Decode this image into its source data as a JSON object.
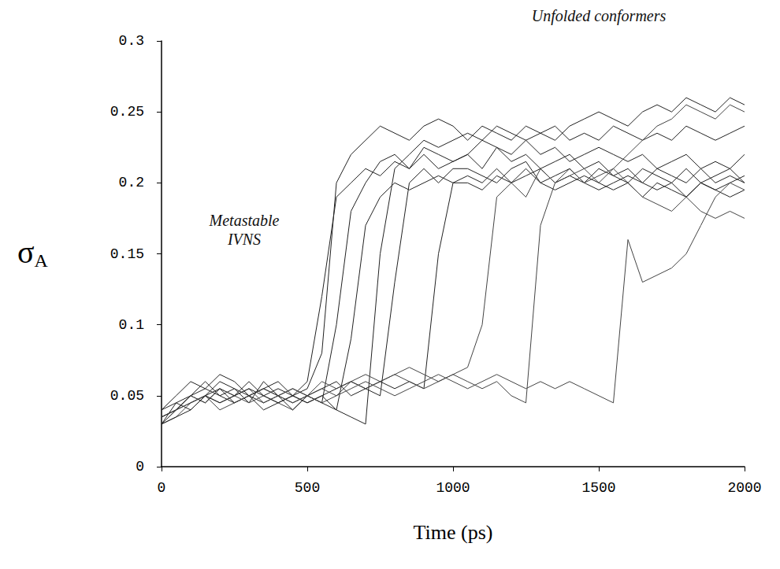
{
  "chart_data": {
    "type": "line",
    "xlabel": "Time (ps)",
    "ylabel": {
      "symbol": "σ",
      "subscript": "A"
    },
    "annotations": [
      {
        "lines": [
          "Unfolded conformers"
        ]
      },
      {
        "lines": [
          "Metastable",
          "IVNS"
        ]
      }
    ],
    "xlim": [
      0,
      2000
    ],
    "xticks": [
      0,
      500,
      1000,
      1500,
      2000
    ],
    "ylim": [
      0,
      0.3
    ],
    "yticks": [
      0,
      0.05,
      0.1,
      0.15,
      0.2,
      0.25,
      0.3
    ],
    "grid": false,
    "x": [
      0,
      50,
      100,
      150,
      200,
      250,
      300,
      350,
      400,
      450,
      500,
      550,
      600,
      650,
      700,
      750,
      800,
      850,
      900,
      950,
      1000,
      1050,
      1100,
      1150,
      1200,
      1250,
      1300,
      1350,
      1400,
      1450,
      1500,
      1550,
      1600,
      1650,
      1700,
      1750,
      1800,
      1850,
      1900,
      1950,
      2000
    ],
    "series": [
      {
        "color": "#222222",
        "values": [
          0.03,
          0.04,
          0.05,
          0.045,
          0.055,
          0.05,
          0.06,
          0.05,
          0.055,
          0.05,
          0.06,
          0.12,
          0.19,
          0.2,
          0.21,
          0.205,
          0.215,
          0.21,
          0.22,
          0.21,
          0.215,
          0.22,
          0.21,
          0.225,
          0.215,
          0.22,
          0.21,
          0.215,
          0.22,
          0.21,
          0.215,
          0.205,
          0.21,
          0.2,
          0.21,
          0.205,
          0.2,
          0.21,
          0.2,
          0.205,
          0.2
        ]
      },
      {
        "color": "#222222",
        "values": [
          0.035,
          0.04,
          0.05,
          0.06,
          0.05,
          0.055,
          0.045,
          0.06,
          0.05,
          0.055,
          0.05,
          0.045,
          0.1,
          0.18,
          0.2,
          0.215,
          0.22,
          0.21,
          0.225,
          0.22,
          0.215,
          0.22,
          0.23,
          0.225,
          0.22,
          0.23,
          0.22,
          0.225,
          0.215,
          0.22,
          0.225,
          0.22,
          0.215,
          0.22,
          0.21,
          0.215,
          0.22,
          0.21,
          0.215,
          0.21,
          0.22
        ]
      },
      {
        "color": "#222222",
        "values": [
          0.03,
          0.045,
          0.04,
          0.05,
          0.06,
          0.055,
          0.05,
          0.045,
          0.05,
          0.04,
          0.05,
          0.045,
          0.04,
          0.09,
          0.17,
          0.19,
          0.2,
          0.195,
          0.2,
          0.205,
          0.2,
          0.2,
          0.195,
          0.205,
          0.2,
          0.21,
          0.2,
          0.195,
          0.2,
          0.205,
          0.2,
          0.195,
          0.2,
          0.19,
          0.2,
          0.195,
          0.19,
          0.2,
          0.195,
          0.19,
          0.195
        ]
      },
      {
        "color": "#222222",
        "values": [
          0.04,
          0.05,
          0.06,
          0.055,
          0.065,
          0.06,
          0.05,
          0.055,
          0.06,
          0.05,
          0.045,
          0.05,
          0.04,
          0.035,
          0.03,
          0.15,
          0.21,
          0.22,
          0.23,
          0.225,
          0.23,
          0.235,
          0.23,
          0.24,
          0.235,
          0.23,
          0.235,
          0.24,
          0.23,
          0.235,
          0.23,
          0.24,
          0.235,
          0.23,
          0.235,
          0.23,
          0.24,
          0.235,
          0.23,
          0.235,
          0.24
        ]
      },
      {
        "color": "#222222",
        "values": [
          0.035,
          0.04,
          0.045,
          0.05,
          0.055,
          0.045,
          0.05,
          0.055,
          0.05,
          0.045,
          0.05,
          0.055,
          0.06,
          0.05,
          0.055,
          0.05,
          0.13,
          0.2,
          0.21,
          0.2,
          0.21,
          0.21,
          0.205,
          0.2,
          0.21,
          0.215,
          0.2,
          0.205,
          0.21,
          0.2,
          0.195,
          0.2,
          0.205,
          0.2,
          0.195,
          0.2,
          0.19,
          0.2,
          0.195,
          0.2,
          0.205
        ]
      },
      {
        "color": "#222222",
        "values": [
          0.04,
          0.045,
          0.05,
          0.055,
          0.05,
          0.045,
          0.05,
          0.04,
          0.045,
          0.05,
          0.045,
          0.05,
          0.055,
          0.06,
          0.055,
          0.06,
          0.055,
          0.06,
          0.055,
          0.15,
          0.2,
          0.205,
          0.2,
          0.21,
          0.2,
          0.205,
          0.21,
          0.2,
          0.205,
          0.2,
          0.21,
          0.205,
          0.2,
          0.21,
          0.205,
          0.2,
          0.21,
          0.2,
          0.205,
          0.21,
          0.2
        ]
      },
      {
        "color": "#444444",
        "values": [
          0.03,
          0.035,
          0.045,
          0.05,
          0.04,
          0.045,
          0.05,
          0.055,
          0.05,
          0.045,
          0.05,
          0.06,
          0.055,
          0.06,
          0.065,
          0.06,
          0.065,
          0.07,
          0.065,
          0.06,
          0.065,
          0.07,
          0.1,
          0.19,
          0.2,
          0.19,
          0.21,
          0.2,
          0.205,
          0.21,
          0.2,
          0.21,
          0.22,
          0.23,
          0.24,
          0.245,
          0.255,
          0.25,
          0.245,
          0.255,
          0.25
        ]
      },
      {
        "color": "#444444",
        "values": [
          0.03,
          0.04,
          0.05,
          0.045,
          0.055,
          0.05,
          0.045,
          0.05,
          0.045,
          0.04,
          0.05,
          0.055,
          0.05,
          0.06,
          0.055,
          0.06,
          0.065,
          0.06,
          0.055,
          0.06,
          0.065,
          0.06,
          0.055,
          0.06,
          0.05,
          0.045,
          0.17,
          0.2,
          0.21,
          0.2,
          0.205,
          0.21,
          0.2,
          0.19,
          0.185,
          0.18,
          0.19,
          0.18,
          0.175,
          0.18,
          0.175
        ]
      },
      {
        "color": "#444444",
        "values": [
          0.035,
          0.04,
          0.045,
          0.05,
          0.045,
          0.05,
          0.055,
          0.045,
          0.05,
          0.055,
          0.05,
          0.045,
          0.05,
          0.055,
          0.06,
          0.055,
          0.05,
          0.055,
          0.06,
          0.065,
          0.06,
          0.055,
          0.06,
          0.065,
          0.06,
          0.055,
          0.06,
          0.055,
          0.06,
          0.055,
          0.05,
          0.045,
          0.16,
          0.13,
          0.135,
          0.14,
          0.15,
          0.17,
          0.19,
          0.2,
          0.195
        ]
      },
      {
        "color": "#222222",
        "values": [
          0.03,
          0.035,
          0.04,
          0.05,
          0.045,
          0.05,
          0.055,
          0.05,
          0.045,
          0.05,
          0.055,
          0.08,
          0.2,
          0.22,
          0.23,
          0.24,
          0.235,
          0.23,
          0.24,
          0.245,
          0.24,
          0.23,
          0.24,
          0.235,
          0.23,
          0.24,
          0.235,
          0.23,
          0.24,
          0.245,
          0.25,
          0.245,
          0.24,
          0.25,
          0.255,
          0.25,
          0.26,
          0.255,
          0.25,
          0.26,
          0.255
        ]
      }
    ]
  }
}
